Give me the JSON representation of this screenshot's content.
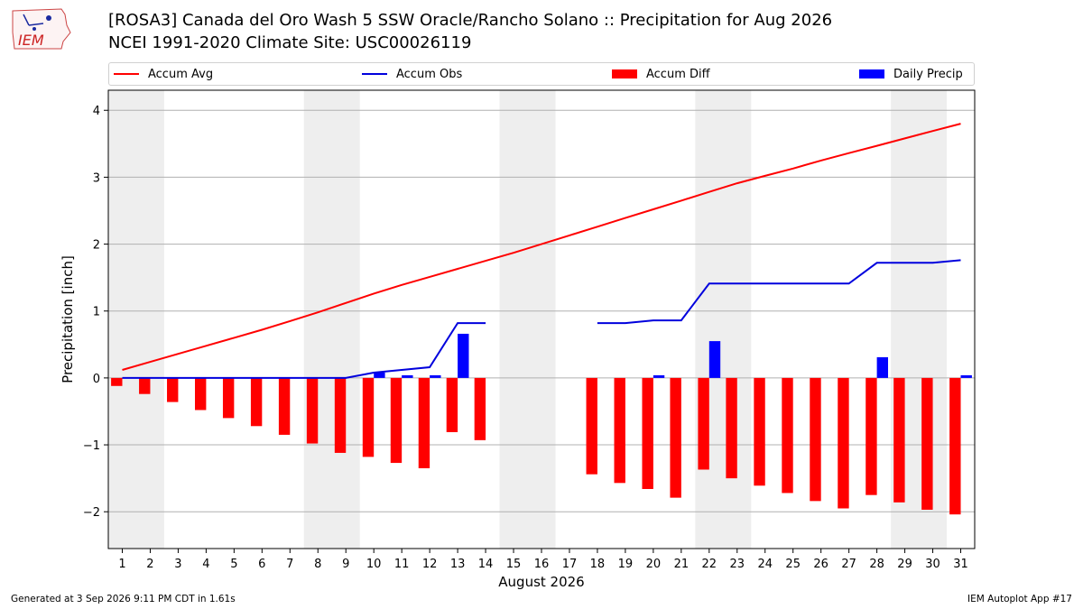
{
  "header": {
    "title_line1": "[ROSA3] Canada del Oro Wash 5 SSW Oracle/Rancho Solano :: Precipitation for Aug 2026",
    "title_line2": "NCEI 1991-2020 Climate Site: USC00026119",
    "logo_text": "IEM"
  },
  "footer": {
    "left": "Generated at 3 Sep 2026 9:11 PM CDT in 1.61s",
    "right": "IEM Autoplot App #17"
  },
  "colors": {
    "accum_avg": "#ff0000",
    "accum_obs": "#0000dd",
    "accum_diff": "#ff0000",
    "daily_precip": "#0000ff",
    "weekend_band": "#eeeeee",
    "grid": "#b0b0b0"
  },
  "chart_data": {
    "type": "bar",
    "title": "[ROSA3] Canada del Oro Wash 5 SSW Oracle/Rancho Solano :: Precipitation for Aug 2026",
    "xlabel": "August 2026",
    "ylabel": "Precipitation [inch]",
    "ylim": [
      -2.55,
      4.3
    ],
    "xlim": [
      0.5,
      31.5
    ],
    "yticks": [
      4,
      3,
      2,
      1,
      0,
      -1,
      -2
    ],
    "ytick_labels": [
      "4",
      "3",
      "2",
      "1",
      "0",
      "−1",
      "−2"
    ],
    "x": [
      1,
      2,
      3,
      4,
      5,
      6,
      7,
      8,
      9,
      10,
      11,
      12,
      13,
      14,
      15,
      16,
      17,
      18,
      19,
      20,
      21,
      22,
      23,
      24,
      25,
      26,
      27,
      28,
      29,
      30,
      31
    ],
    "grid": "horizontal",
    "legend_position": "top",
    "shaded_days": [
      [
        0.5,
        2.5
      ],
      [
        7.5,
        9.5
      ],
      [
        14.5,
        16.5
      ],
      [
        21.5,
        23.5
      ],
      [
        28.5,
        30.5
      ]
    ],
    "series": [
      {
        "name": "Accum Avg",
        "kind": "line",
        "values": [
          0.12,
          0.24,
          0.36,
          0.48,
          0.6,
          0.72,
          0.85,
          0.98,
          1.12,
          1.26,
          1.39,
          1.51,
          1.63,
          1.75,
          1.87,
          2.0,
          2.13,
          2.26,
          2.39,
          2.52,
          2.65,
          2.78,
          2.91,
          3.02,
          3.13,
          3.25,
          3.36,
          3.47,
          3.58,
          3.69,
          3.8
        ]
      },
      {
        "name": "Accum Obs",
        "kind": "line",
        "values": [
          0,
          0,
          0,
          0,
          0,
          0,
          0,
          0,
          0,
          0.08,
          0.12,
          0.16,
          0.82,
          0.82,
          null,
          null,
          null,
          0.82,
          0.82,
          0.86,
          0.86,
          1.41,
          1.41,
          1.41,
          1.41,
          1.41,
          1.41,
          1.72,
          1.72,
          1.72,
          1.76
        ]
      },
      {
        "name": "Accum Diff",
        "kind": "bar",
        "values": [
          -0.12,
          -0.24,
          -0.36,
          -0.48,
          -0.6,
          -0.72,
          -0.85,
          -0.98,
          -1.12,
          -1.18,
          -1.27,
          -1.35,
          -0.81,
          -0.93,
          null,
          null,
          null,
          -1.44,
          -1.57,
          -1.66,
          -1.79,
          -1.37,
          -1.5,
          -1.61,
          -1.72,
          -1.84,
          -1.95,
          -1.75,
          -1.86,
          -1.97,
          -2.04
        ]
      },
      {
        "name": "Daily Precip",
        "kind": "bar",
        "values": [
          0,
          0,
          0,
          0,
          0,
          0,
          0,
          0,
          0,
          0.08,
          0.04,
          0.04,
          0.66,
          0,
          null,
          null,
          null,
          0,
          0,
          0.04,
          0,
          0.55,
          0,
          0,
          0,
          0,
          0,
          0.31,
          0,
          0,
          0.04
        ]
      }
    ]
  }
}
